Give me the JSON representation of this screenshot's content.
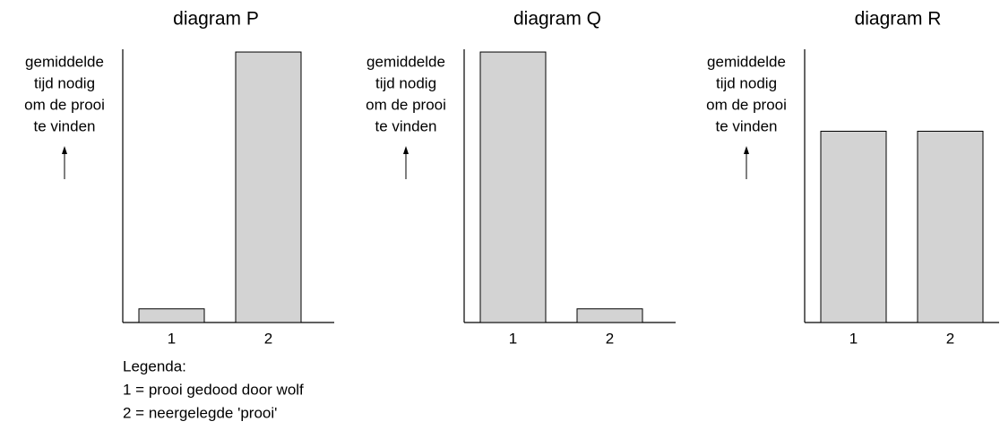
{
  "chart_data": [
    {
      "type": "bar",
      "title": "diagram P",
      "y_label": [
        "gemiddelde",
        "tijd nodig",
        "om de prooi",
        "te vinden"
      ],
      "categories": [
        "1",
        "2"
      ],
      "values": [
        5,
        99
      ],
      "color": "#d3d3d3",
      "ylim": [
        0,
        100
      ]
    },
    {
      "type": "bar",
      "title": "diagram Q",
      "y_label": [
        "gemiddelde",
        "tijd nodig",
        "om de prooi",
        "te vinden"
      ],
      "categories": [
        "1",
        "2"
      ],
      "values": [
        99,
        5
      ],
      "color": "#d3d3d3",
      "ylim": [
        0,
        100
      ]
    },
    {
      "type": "bar",
      "title": "diagram R",
      "y_label": [
        "gemiddelde",
        "tijd nodig",
        "om de prooi",
        "te vinden"
      ],
      "categories": [
        "1",
        "2"
      ],
      "values": [
        70,
        70
      ],
      "color": "#d3d3d3",
      "ylim": [
        0,
        100
      ]
    }
  ],
  "legend": {
    "title": "Legenda:",
    "items": [
      "1 = prooi gedood door wolf",
      "2 = neergelegde 'prooi'"
    ]
  }
}
